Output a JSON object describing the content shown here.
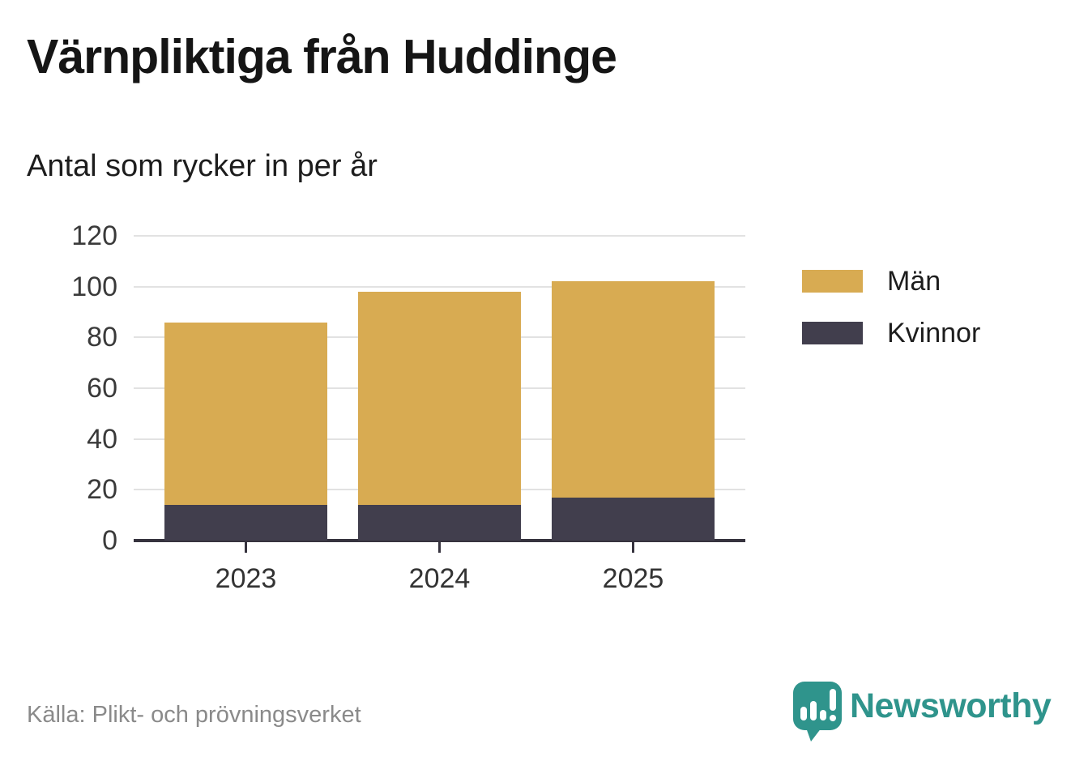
{
  "header": {
    "title": "Värnpliktiga från Huddinge",
    "subtitle": "Antal som rycker in per år"
  },
  "chart_data": {
    "type": "bar",
    "stacked": true,
    "title": "Värnpliktiga från Huddinge",
    "subtitle": "Antal som rycker in per år",
    "categories": [
      "2023",
      "2024",
      "2025"
    ],
    "series": [
      {
        "name": "Män",
        "color": "#d8ab52",
        "values": [
          72,
          84,
          85
        ]
      },
      {
        "name": "Kvinnor",
        "color": "#413e4d",
        "values": [
          14,
          14,
          17
        ]
      }
    ],
    "stack_order_bottom_to_top": [
      "Kvinnor",
      "Män"
    ],
    "totals": [
      86,
      98,
      102
    ],
    "xlabel": "",
    "ylabel": "",
    "ylim": [
      0,
      120
    ],
    "yticks": [
      0,
      20,
      40,
      60,
      80,
      100,
      120
    ],
    "grid": true,
    "legend": {
      "position": "right",
      "items": [
        {
          "label": "Män",
          "color": "#d8ab52"
        },
        {
          "label": "Kvinnor",
          "color": "#413e4d"
        }
      ]
    }
  },
  "footer": {
    "source": "Källa: Plikt- och prövningsverket",
    "brand": {
      "name": "Newsworthy",
      "icon": "newsworthy-speech-bubble-chart-icon",
      "color": "#2f948c"
    }
  },
  "colors": {
    "axis": "#36333e",
    "gridline": "#e2e2e2",
    "title_text": "#151515",
    "tick_text": "#3a3a3a",
    "muted_text": "#8a8a8a"
  }
}
